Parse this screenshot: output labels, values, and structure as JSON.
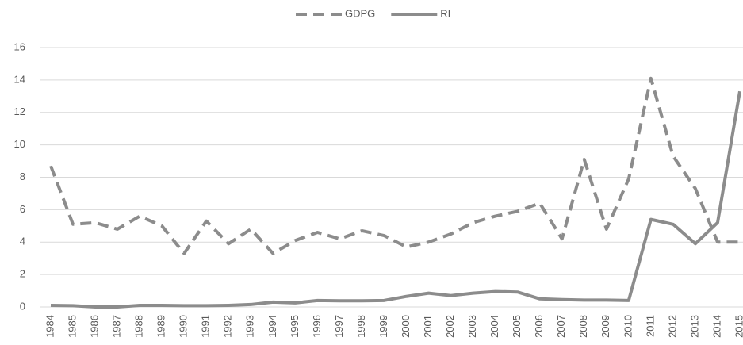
{
  "chart_data": {
    "type": "line",
    "categories": [
      "1984",
      "1985",
      "1986",
      "1987",
      "1988",
      "1989",
      "1990",
      "1991",
      "1992",
      "1993",
      "1994",
      "1995",
      "1996",
      "1997",
      "1998",
      "1999",
      "2000",
      "2001",
      "2002",
      "2003",
      "2004",
      "2005",
      "2006",
      "2007",
      "2008",
      "2009",
      "2010",
      "2011",
      "2012",
      "2013",
      "2014",
      "2015"
    ],
    "series": [
      {
        "name": "GDPG",
        "color": "#8c8c8c",
        "dash": true,
        "values": [
          8.7,
          5.1,
          5.2,
          4.8,
          5.6,
          5.0,
          3.3,
          5.3,
          3.9,
          4.8,
          3.3,
          4.1,
          4.6,
          4.2,
          4.7,
          4.4,
          3.7,
          4.0,
          4.5,
          5.2,
          5.6,
          5.9,
          6.4,
          4.2,
          9.1,
          4.8,
          7.9,
          14.1,
          9.3,
          7.3,
          4.0,
          4.0
        ]
      },
      {
        "name": "RI",
        "color": "#8c8c8c",
        "dash": false,
        "values": [
          0.1,
          0.08,
          0.0,
          0.0,
          0.1,
          0.1,
          0.08,
          0.08,
          0.1,
          0.15,
          0.3,
          0.25,
          0.4,
          0.38,
          0.38,
          0.4,
          0.65,
          0.85,
          0.7,
          0.85,
          0.95,
          0.92,
          0.5,
          0.45,
          0.42,
          0.42,
          0.4,
          5.4,
          5.1,
          3.9,
          5.2,
          13.3
        ]
      }
    ],
    "ylim": [
      0,
      16
    ],
    "yticks": [
      0,
      2,
      4,
      6,
      8,
      10,
      12,
      14,
      16
    ],
    "grid": true,
    "legend": "top"
  }
}
